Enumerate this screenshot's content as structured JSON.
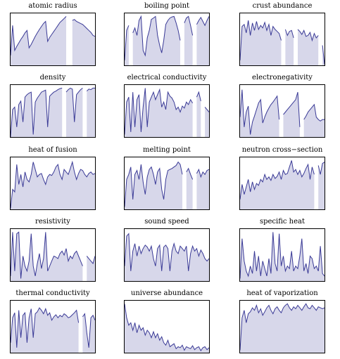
{
  "chart_data": [
    {
      "type": "area",
      "title": "atomic radius",
      "ylim": [
        0,
        1
      ],
      "values": [
        0.2,
        0.8,
        0.3,
        0.38,
        0.45,
        0.52,
        0.58,
        0.65,
        0.7,
        0.35,
        0.42,
        0.5,
        0.58,
        0.65,
        0.72,
        0.78,
        0.84,
        0.88,
        0.48,
        0.56,
        0.62,
        0.68,
        0.74,
        0.8,
        0.86,
        0.9,
        0.94,
        0.98,
        null,
        null,
        0.9,
        0.92,
        0.88,
        0.86,
        0.84,
        0.82,
        0.78,
        0.74,
        0.7,
        0.66,
        0.6,
        0.58
      ]
    },
    {
      "type": "area",
      "title": "boiling point",
      "ylim": [
        0,
        1
      ],
      "values": [
        0.1,
        0.7,
        0.8,
        null,
        0.65,
        0.75,
        0.6,
        0.9,
        0.98,
        0.3,
        0.2,
        0.55,
        0.7,
        0.92,
        0.95,
        0.98,
        0.6,
        0.4,
        0.25,
        0.5,
        0.82,
        0.9,
        0.95,
        0.97,
        0.98,
        0.85,
        0.7,
        0.5,
        null,
        0.85,
        0.95,
        0.98,
        0.8,
        0.6,
        null,
        0.82,
        0.9,
        0.96,
        0.88,
        0.8,
        0.9,
        0.98
      ]
    },
    {
      "type": "area",
      "title": "crust abundance",
      "ylim": [
        0,
        1
      ],
      "values": [
        0.1,
        0.78,
        0.82,
        0.65,
        0.9,
        0.6,
        0.85,
        0.7,
        0.88,
        0.72,
        0.8,
        0.75,
        0.86,
        0.7,
        0.82,
        0.6,
        0.78,
        0.72,
        0.68,
        0.64,
        0.5,
        null,
        0.72,
        0.6,
        0.68,
        0.7,
        0.55,
        null,
        0.72,
        0.68,
        0.62,
        0.7,
        0.58,
        0.6,
        0.66,
        0.5,
        0.64,
        0.55,
        0.6,
        null,
        0.4,
        0.02
      ]
    },
    {
      "type": "area",
      "title": "density",
      "ylim": [
        0,
        1
      ],
      "values": [
        0.0,
        0.55,
        0.6,
        0.2,
        0.65,
        0.72,
        0.3,
        0.8,
        0.85,
        0.88,
        0.9,
        0.05,
        0.7,
        0.78,
        0.84,
        0.9,
        0.92,
        0.94,
        0.2,
        0.82,
        0.86,
        0.9,
        0.92,
        0.95,
        0.97,
        0.98,
        null,
        0.9,
        0.95,
        0.98,
        0.96,
        0.3,
        0.85,
        0.9,
        0.95,
        0.98,
        null,
        0.92,
        0.96,
        0.95,
        0.98,
        0.98
      ]
    },
    {
      "type": "area",
      "title": "electrical conductivity",
      "ylim": [
        0,
        1
      ],
      "values": [
        0.05,
        0.7,
        0.8,
        0.1,
        0.9,
        0.2,
        0.75,
        0.85,
        0.1,
        0.6,
        0.98,
        0.2,
        0.7,
        0.8,
        0.9,
        0.75,
        0.85,
        0.95,
        0.6,
        0.7,
        0.55,
        0.9,
        0.82,
        0.78,
        0.7,
        0.55,
        0.6,
        0.5,
        0.62,
        0.58,
        0.7,
        0.65,
        0.75,
        0.68,
        null,
        0.8,
        0.9,
        0.72,
        null,
        0.6,
        0.55,
        0.5
      ]
    },
    {
      "type": "area",
      "title": "electronegativity",
      "ylim": [
        0,
        1
      ],
      "values": [
        0.4,
        0.95,
        0.2,
        0.5,
        0.62,
        0.05,
        0.3,
        0.42,
        0.55,
        0.68,
        0.75,
        0.28,
        0.4,
        0.5,
        0.58,
        0.65,
        0.7,
        0.76,
        0.82,
        0.35,
        null,
        0.45,
        0.5,
        0.55,
        0.6,
        0.65,
        0.7,
        0.75,
        0.9,
        0.2,
        null,
        0.35,
        0.42,
        0.5,
        0.55,
        0.6,
        0.65,
        0.4,
        0.35,
        0.32,
        0.35,
        0.35
      ]
    },
    {
      "type": "area",
      "title": "heat of fusion",
      "ylim": [
        0,
        1
      ],
      "values": [
        0.02,
        0.4,
        0.35,
        0.9,
        0.5,
        0.7,
        0.45,
        0.75,
        0.6,
        0.55,
        0.7,
        0.95,
        0.8,
        0.65,
        0.7,
        0.72,
        0.6,
        0.5,
        0.65,
        0.7,
        0.68,
        0.75,
        0.85,
        0.9,
        0.7,
        0.6,
        0.8,
        0.75,
        0.7,
        0.82,
        0.95,
        0.75,
        0.6,
        0.72,
        0.8,
        0.78,
        0.7,
        0.65,
        0.72,
        0.75,
        0.7,
        0.72
      ]
    },
    {
      "type": "area",
      "title": "melting point",
      "ylim": [
        0,
        1
      ],
      "values": [
        0.05,
        0.6,
        0.7,
        0.85,
        0.2,
        0.7,
        0.78,
        0.6,
        0.9,
        0.55,
        0.3,
        0.65,
        0.8,
        0.85,
        0.7,
        0.5,
        0.75,
        0.82,
        0.4,
        0.2,
        0.6,
        0.78,
        0.8,
        0.82,
        0.85,
        0.88,
        0.95,
        0.9,
        0.7,
        null,
        0.75,
        0.82,
        0.7,
        0.6,
        null,
        0.72,
        0.8,
        0.65,
        0.75,
        0.7,
        0.78,
        0.8
      ]
    },
    {
      "type": "area",
      "title": "neutron cross−section",
      "ylim": [
        0,
        1
      ],
      "values": [
        0.2,
        0.5,
        0.3,
        0.45,
        0.6,
        0.35,
        0.55,
        0.4,
        0.52,
        0.48,
        0.6,
        0.55,
        0.7,
        0.6,
        0.65,
        0.58,
        0.7,
        0.62,
        0.66,
        0.75,
        0.6,
        0.78,
        0.7,
        0.72,
        0.85,
        0.98,
        0.75,
        0.8,
        0.7,
        0.78,
        0.65,
        0.72,
        0.82,
        0.9,
        0.6,
        0.85,
        0.7,
        null,
        0.88,
        0.7,
        0.92,
        0.95
      ]
    },
    {
      "type": "area",
      "title": "resistivity",
      "ylim": [
        0,
        1
      ],
      "values": [
        0.1,
        0.98,
        0.2,
        0.95,
        0.98,
        0.05,
        0.5,
        0.3,
        0.2,
        0.4,
        0.95,
        0.3,
        0.1,
        0.35,
        0.55,
        0.25,
        0.45,
        0.98,
        0.2,
        0.3,
        0.4,
        0.5,
        0.48,
        0.45,
        0.55,
        0.6,
        0.52,
        0.65,
        0.4,
        0.5,
        0.45,
        0.55,
        0.6,
        0.5,
        0.4,
        0.3,
        null,
        0.5,
        0.45,
        0.4,
        0.35,
        0.5
      ]
    },
    {
      "type": "area",
      "title": "sound speed",
      "ylim": [
        0,
        1
      ],
      "values": [
        0.3,
        0.9,
        0.95,
        0.2,
        0.6,
        0.75,
        0.5,
        0.7,
        0.55,
        0.65,
        0.72,
        0.68,
        0.6,
        0.7,
        0.45,
        0.3,
        0.65,
        0.72,
        0.2,
        0.68,
        0.72,
        0.65,
        0.2,
        0.6,
        0.75,
        0.6,
        0.55,
        0.7,
        0.65,
        0.6,
        0.7,
        0.2,
        0.55,
        0.7,
        0.6,
        0.65,
        0.5,
        0.62,
        0.55,
        0.45,
        0.4,
        0.45
      ]
    },
    {
      "type": "area",
      "title": "specific heat",
      "ylim": [
        0,
        1
      ],
      "values": [
        0.05,
        0.85,
        0.4,
        0.2,
        0.1,
        0.3,
        0.15,
        0.6,
        0.2,
        0.5,
        0.1,
        0.4,
        0.25,
        0.1,
        0.45,
        0.15,
        0.98,
        0.35,
        0.2,
        0.95,
        0.3,
        0.5,
        0.2,
        0.3,
        0.25,
        0.6,
        0.2,
        0.3,
        0.25,
        0.5,
        0.85,
        0.2,
        0.35,
        0.15,
        0.5,
        0.45,
        0.25,
        0.3,
        0.2,
        0.7,
        0.15,
        0.1
      ]
    },
    {
      "type": "area",
      "title": "thermal conductivity",
      "ylim": [
        0,
        1
      ],
      "values": [
        0.2,
        0.7,
        0.8,
        0.1,
        0.85,
        0.3,
        0.75,
        0.8,
        0.2,
        0.7,
        0.88,
        0.3,
        0.78,
        0.82,
        0.9,
        0.85,
        0.78,
        0.88,
        0.75,
        0.8,
        0.65,
        0.72,
        0.76,
        0.7,
        0.75,
        0.72,
        0.78,
        0.75,
        0.7,
        0.72,
        0.76,
        0.8,
        0.85,
        0.6,
        null,
        0.72,
        0.78,
        0.4,
        0.1,
        0.7,
        0.75,
        0.65
      ]
    },
    {
      "type": "area",
      "title": "universe abundance",
      "ylim": [
        0,
        1
      ],
      "values": [
        0.98,
        0.7,
        0.55,
        0.6,
        0.45,
        0.6,
        0.4,
        0.55,
        0.45,
        0.5,
        0.35,
        0.45,
        0.4,
        0.3,
        0.42,
        0.3,
        0.38,
        0.25,
        0.32,
        0.2,
        0.15,
        0.25,
        0.12,
        0.15,
        0.18,
        0.08,
        0.12,
        0.1,
        0.15,
        0.05,
        0.12,
        0.1,
        0.08,
        0.14,
        0.06,
        0.1,
        0.12,
        0.04,
        0.1,
        0.12,
        0.06,
        0.1
      ]
    },
    {
      "type": "area",
      "title": "heat of vaporization",
      "ylim": [
        0,
        1
      ],
      "values": [
        0.05,
        0.7,
        0.85,
        0.6,
        0.78,
        0.82,
        0.9,
        0.85,
        0.95,
        0.8,
        0.88,
        0.75,
        0.82,
        0.9,
        0.95,
        0.85,
        0.78,
        0.88,
        0.92,
        0.85,
        0.8,
        0.9,
        0.95,
        0.98,
        0.9,
        0.85,
        0.92,
        0.88,
        0.95,
        0.9,
        0.85,
        0.92,
        0.98,
        0.9,
        0.88,
        0.95,
        0.9,
        0.85,
        0.92,
        0.9,
        0.88,
        0.9
      ]
    }
  ]
}
